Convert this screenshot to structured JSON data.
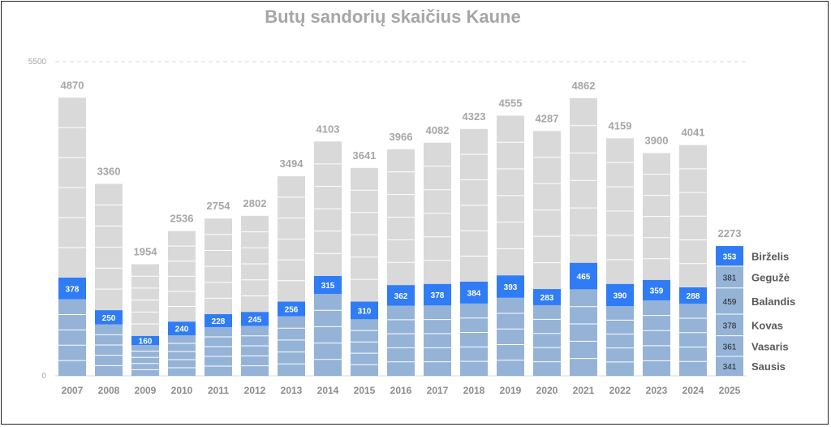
{
  "chart_data": {
    "type": "bar",
    "title": "Butų sandorių skaičius Kaune",
    "ylim": [
      0,
      5500
    ],
    "yticks": [
      "0",
      "5500"
    ],
    "categories": [
      "2007",
      "2008",
      "2009",
      "2010",
      "2011",
      "2012",
      "2013",
      "2014",
      "2015",
      "2016",
      "2017",
      "2018",
      "2019",
      "2020",
      "2021",
      "2022",
      "2023",
      "2024",
      "2025"
    ],
    "totals": [
      4870,
      3360,
      1954,
      2536,
      2754,
      2802,
      3494,
      4103,
      3641,
      3966,
      4082,
      4323,
      4555,
      4287,
      4862,
      4159,
      3900,
      4041,
      2273
    ],
    "june_values": [
      378,
      250,
      160,
      240,
      228,
      245,
      256,
      315,
      310,
      362,
      378,
      384,
      393,
      283,
      465,
      390,
      359,
      288,
      353
    ],
    "first_half_totals_estimated": [
      1720,
      1150,
      700,
      950,
      1080,
      1120,
      1300,
      1750,
      1300,
      1590,
      1610,
      1650,
      1760,
      1520,
      1980,
      1610,
      1680,
      1550,
      2273
    ],
    "months_2025": [
      {
        "name": "Sausis",
        "value": 341
      },
      {
        "name": "Vasaris",
        "value": 361
      },
      {
        "name": "Kovas",
        "value": 378
      },
      {
        "name": "Balandis",
        "value": 459
      },
      {
        "name": "Gegužė",
        "value": 381
      },
      {
        "name": "Birželis",
        "value": 353
      }
    ],
    "colors": {
      "first_months": "#95b3d7",
      "june": "#2f7cf6",
      "rest_of_year": "#d9d9d9",
      "separator": "#ffffff",
      "gridline": "#d9d9d9"
    },
    "grid": "dashed line at top of axis"
  }
}
